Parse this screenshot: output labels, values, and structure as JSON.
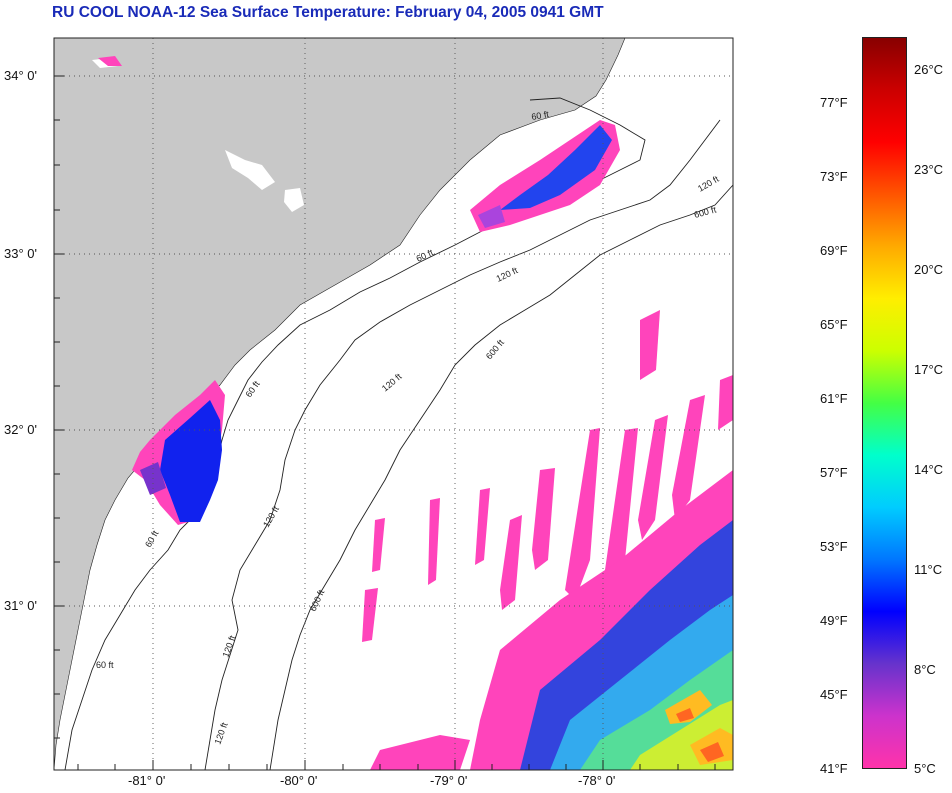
{
  "title": "RU COOL  NOAA-12  Sea Surface Temperature:  February 04, 2005 0941 GMT",
  "map": {
    "latitude_labels": [
      "34° 0'",
      "33° 0'",
      "32° 0'",
      "31° 0'"
    ],
    "longitude_labels": [
      "-81° 0'",
      "-80° 0'",
      "-79° 0'",
      "-78° 0'"
    ],
    "isobath_labels": [
      "60 ft",
      "120 ft",
      "600 ft"
    ],
    "land_color": "#c8c8c8",
    "ocean_color": "#ffffff",
    "grid": "dotted"
  },
  "colorbar": {
    "fahrenheit_labels": [
      "77°F",
      "73°F",
      "69°F",
      "65°F",
      "61°F",
      "57°F",
      "53°F",
      "49°F",
      "45°F",
      "41°F"
    ],
    "celsius_labels": [
      "26°C",
      "23°C",
      "20°C",
      "17°C",
      "14°C",
      "11°C",
      "8°C",
      "5°C"
    ],
    "colors": [
      "#ff33aa",
      "#cc33cc",
      "#6633cc",
      "#0000ff",
      "#0077ff",
      "#00ccff",
      "#00ffcc",
      "#44ff44",
      "#ccff00",
      "#ffee00",
      "#ffaa00",
      "#ff5500",
      "#ff0000",
      "#cc0000",
      "#880000"
    ]
  }
}
